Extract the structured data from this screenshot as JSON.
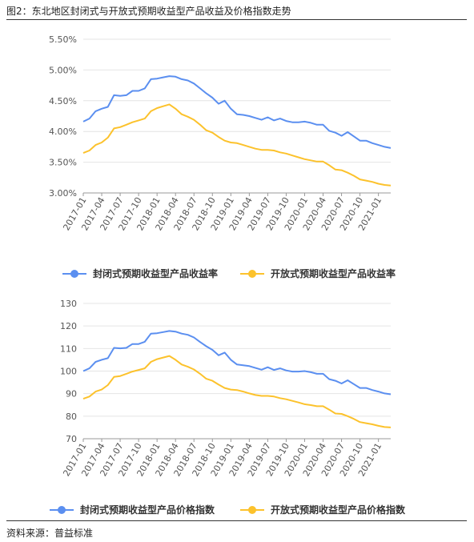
{
  "figure_title": "图2：东北地区封闭式与开放式预期收益型产品收益及价格指数走势",
  "source": "资料来源：普益标准",
  "colors": {
    "closed": "#5b8ff0",
    "open": "#fcc22c",
    "grid": "#e4e4e4",
    "axis": "#999999"
  },
  "chart_data": [
    {
      "type": "line",
      "x": [
        "2017-01",
        "2017-02",
        "2017-03",
        "2017-04",
        "2017-05",
        "2017-06",
        "2017-07",
        "2017-08",
        "2017-09",
        "2017-10",
        "2017-11",
        "2017-12",
        "2018-01",
        "2018-02",
        "2018-03",
        "2018-04",
        "2018-05",
        "2018-06",
        "2018-07",
        "2018-08",
        "2018-09",
        "2018-10",
        "2018-11",
        "2018-12",
        "2019-01",
        "2019-02",
        "2019-03",
        "2019-04",
        "2019-05",
        "2019-06",
        "2019-07",
        "2019-08",
        "2019-09",
        "2019-10",
        "2019-11",
        "2019-12",
        "2020-01",
        "2020-02",
        "2020-03",
        "2020-04",
        "2020-05",
        "2020-06",
        "2020-07",
        "2020-08",
        "2020-09",
        "2020-10",
        "2020-11",
        "2020-12",
        "2021-01",
        "2021-02",
        "2021-03"
      ],
      "x_tick_labels": [
        "2017-01",
        "2017-04",
        "2017-07",
        "2017-10",
        "2018-01",
        "2018-04",
        "2018-07",
        "2018-10",
        "2019-01",
        "2019-04",
        "2019-07",
        "2019-10",
        "2020-01",
        "2020-04",
        "2020-07",
        "2020-10",
        "2021-01"
      ],
      "ylim": [
        3.0,
        5.5
      ],
      "y_ticks": [
        "3.00%",
        "3.50%",
        "4.00%",
        "4.50%",
        "5.00%",
        "5.50%"
      ],
      "grid": "horizontal",
      "legend_position": "bottom",
      "series": [
        {
          "name": "封闭式预期收益型产品收益率",
          "values": [
            4.16,
            4.21,
            4.33,
            4.37,
            4.4,
            4.59,
            4.58,
            4.59,
            4.66,
            4.66,
            4.7,
            4.85,
            4.86,
            4.88,
            4.9,
            4.89,
            4.85,
            4.83,
            4.78,
            4.7,
            4.62,
            4.55,
            4.45,
            4.5,
            4.37,
            4.28,
            4.27,
            4.25,
            4.22,
            4.19,
            4.23,
            4.18,
            4.21,
            4.17,
            4.15,
            4.15,
            4.16,
            4.14,
            4.11,
            4.11,
            4.01,
            3.98,
            3.93,
            3.99,
            3.92,
            3.85,
            3.85,
            3.81,
            3.78,
            3.75,
            3.73
          ]
        },
        {
          "name": "开放式预期收益型产品收益率",
          "values": [
            3.65,
            3.69,
            3.78,
            3.82,
            3.9,
            4.05,
            4.07,
            4.11,
            4.15,
            4.18,
            4.21,
            4.33,
            4.38,
            4.41,
            4.44,
            4.37,
            4.28,
            4.24,
            4.19,
            4.11,
            4.02,
            3.98,
            3.91,
            3.85,
            3.82,
            3.81,
            3.78,
            3.75,
            3.72,
            3.7,
            3.7,
            3.69,
            3.66,
            3.64,
            3.61,
            3.58,
            3.55,
            3.53,
            3.51,
            3.51,
            3.45,
            3.38,
            3.37,
            3.33,
            3.28,
            3.22,
            3.2,
            3.18,
            3.15,
            3.13,
            3.12
          ]
        }
      ]
    },
    {
      "type": "line",
      "x": [
        "2017-01",
        "2017-02",
        "2017-03",
        "2017-04",
        "2017-05",
        "2017-06",
        "2017-07",
        "2017-08",
        "2017-09",
        "2017-10",
        "2017-11",
        "2017-12",
        "2018-01",
        "2018-02",
        "2018-03",
        "2018-04",
        "2018-05",
        "2018-06",
        "2018-07",
        "2018-08",
        "2018-09",
        "2018-10",
        "2018-11",
        "2018-12",
        "2019-01",
        "2019-02",
        "2019-03",
        "2019-04",
        "2019-05",
        "2019-06",
        "2019-07",
        "2019-08",
        "2019-09",
        "2019-10",
        "2019-11",
        "2019-12",
        "2020-01",
        "2020-02",
        "2020-03",
        "2020-04",
        "2020-05",
        "2020-06",
        "2020-07",
        "2020-08",
        "2020-09",
        "2020-10",
        "2020-11",
        "2020-12",
        "2021-01",
        "2021-02",
        "2021-03"
      ],
      "x_tick_labels": [
        "2017-01",
        "2017-04",
        "2017-07",
        "2017-10",
        "2018-01",
        "2018-04",
        "2018-07",
        "2018-10",
        "2019-01",
        "2019-04",
        "2019-07",
        "2019-10",
        "2020-01",
        "2020-04",
        "2020-07",
        "2020-10",
        "2021-01"
      ],
      "ylim": [
        70,
        130
      ],
      "y_ticks": [
        "70",
        "80",
        "90",
        "100",
        "110",
        "120",
        "130"
      ],
      "grid": "horizontal",
      "legend_position": "bottom",
      "series": [
        {
          "name": "封闭式预期收益型产品价格指数",
          "values": [
            100,
            101.2,
            104.1,
            105.0,
            105.7,
            110.3,
            110.1,
            110.3,
            112.0,
            112.0,
            113.0,
            116.6,
            116.8,
            117.3,
            117.8,
            117.5,
            116.6,
            116.1,
            114.9,
            112.9,
            111.0,
            109.4,
            107.0,
            108.2,
            105.0,
            102.9,
            102.6,
            102.2,
            101.4,
            100.6,
            101.7,
            100.5,
            101.2,
            100.3,
            99.8,
            99.8,
            100.0,
            99.5,
            98.8,
            98.8,
            96.4,
            95.7,
            94.5,
            95.9,
            94.2,
            92.5,
            92.5,
            91.6,
            90.9,
            90.1,
            89.7
          ]
        },
        {
          "name": "开放式预期收益型产品价格指数",
          "values": [
            87.7,
            88.7,
            90.9,
            91.8,
            93.8,
            97.4,
            97.8,
            98.8,
            99.8,
            100.5,
            101.2,
            104.1,
            105.3,
            106.0,
            106.7,
            105.0,
            102.9,
            101.9,
            100.7,
            98.8,
            96.6,
            95.7,
            94.0,
            92.5,
            91.8,
            91.6,
            90.9,
            90.1,
            89.4,
            89.0,
            89.0,
            88.7,
            88.0,
            87.5,
            86.8,
            86.1,
            85.3,
            84.9,
            84.4,
            84.4,
            82.9,
            81.2,
            81.0,
            80.0,
            78.8,
            77.4,
            76.9,
            76.4,
            75.7,
            75.2,
            75.0
          ]
        }
      ]
    }
  ]
}
